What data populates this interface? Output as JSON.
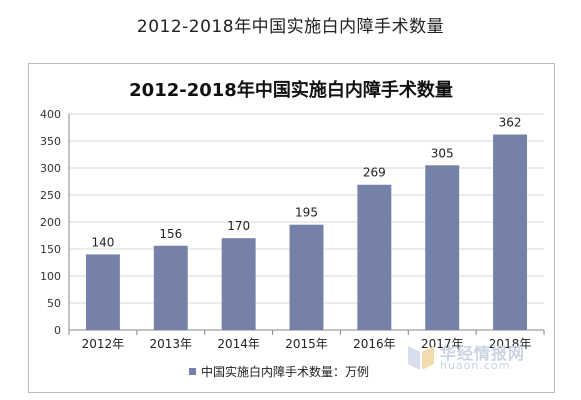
{
  "page": {
    "title": "2012-2018年中国实施白内障手术数量"
  },
  "watermark": {
    "brand": "华经情报网",
    "url": "huaon.com"
  },
  "chart_data": {
    "type": "bar",
    "title": "2012-2018年中国实施白内障手术数量",
    "categories": [
      "2012年",
      "2013年",
      "2014年",
      "2015年",
      "2016年",
      "2017年",
      "2018年"
    ],
    "series": [
      {
        "name": "中国实施白内障手术数量：万例",
        "values": [
          140,
          156,
          170,
          195,
          269,
          305,
          362
        ]
      }
    ],
    "ylim": [
      0,
      400
    ],
    "yticks": [
      0,
      50,
      100,
      150,
      200,
      250,
      300,
      350,
      400
    ],
    "xlabel": "",
    "ylabel": "",
    "grid": true,
    "legend": "bottom",
    "colors": {
      "bar": "#7581a8",
      "grid": "#d9d9d9",
      "axis": "#888888"
    }
  }
}
